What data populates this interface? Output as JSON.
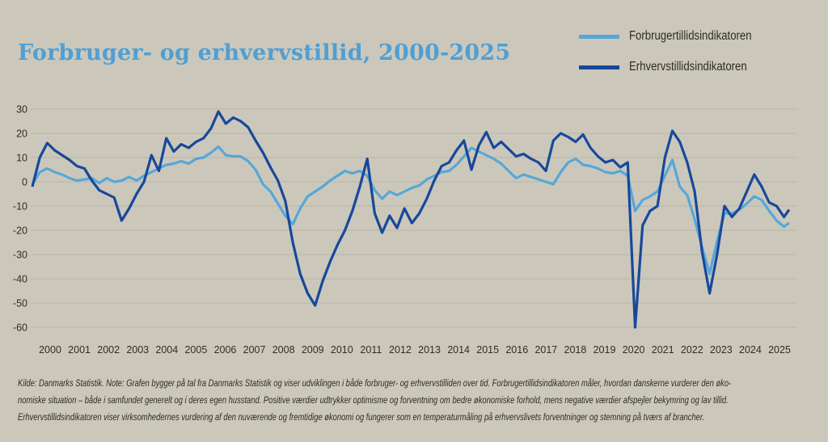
{
  "header": {
    "title": "Forbruger- og erhvervstillid, 2000-2025"
  },
  "legend": {
    "items": [
      {
        "label": "Forbrugertillidsindikatoren",
        "color": "#56a7d8"
      },
      {
        "label": "Erhvervstillidsindikatoren",
        "color": "#17489b"
      }
    ]
  },
  "footnote": {
    "lines": [
      "Kilde: Danmarks Statistik. Note: Grafen bygger på tal fra Danmarks Statistik og viser udviklingen i både forbruger- og erhvervstilliden over tid. Forbrugertillidsindikatoren måler, hvordan danskerne vurderer den øko-",
      "nomiske situation – både i samfundet generelt og i deres egen husstand. Positive værdier udtrykker optimisme og forventning om bedre økonomiske forhold, mens negative værdier afspejler bekymring og lav tillid.",
      "Erhvervstillidsindikatoren viser virksomhedernes vurdering af den nuværende og fremtidige økonomi og fungerer som en temperaturmåling på erhvervslivets forventninger og stemning på tværs af brancher."
    ]
  },
  "chart_data": {
    "type": "line",
    "title": "Forbruger- og erhvervstillid, 2000-2025",
    "xlabel": "",
    "ylabel": "",
    "ylim": [
      -60,
      30
    ],
    "yticks": [
      30,
      20,
      10,
      0,
      -10,
      -20,
      -30,
      -40,
      -50,
      -60
    ],
    "xticks": [
      "2000",
      "2001",
      "2002",
      "2003",
      "2004",
      "2005",
      "2006",
      "2007",
      "2008",
      "2009",
      "2010",
      "2011",
      "2012",
      "2013",
      "2014",
      "2015",
      "2016",
      "2017",
      "2018",
      "2019",
      "2020",
      "2021",
      "2022",
      "2023",
      "2024",
      "2025"
    ],
    "grid": true,
    "legend_position": "top-right",
    "x": [
      2000,
      2000.25,
      2000.5,
      2000.75,
      2001,
      2001.25,
      2001.5,
      2001.75,
      2002,
      2002.25,
      2002.5,
      2002.75,
      2003,
      2003.25,
      2003.5,
      2003.75,
      2004,
      2004.25,
      2004.5,
      2004.75,
      2005,
      2005.25,
      2005.5,
      2005.75,
      2006,
      2006.25,
      2006.5,
      2006.75,
      2007,
      2007.25,
      2007.5,
      2007.75,
      2008,
      2008.25,
      2008.5,
      2008.75,
      2009,
      2009.25,
      2009.5,
      2009.75,
      2010,
      2010.25,
      2010.5,
      2010.75,
      2011,
      2011.25,
      2011.5,
      2011.75,
      2012,
      2012.25,
      2012.5,
      2012.75,
      2013,
      2013.25,
      2013.5,
      2013.75,
      2014,
      2014.25,
      2014.5,
      2014.75,
      2015,
      2015.25,
      2015.5,
      2015.75,
      2016,
      2016.25,
      2016.5,
      2016.75,
      2017,
      2017.25,
      2017.5,
      2017.75,
      2018,
      2018.25,
      2018.5,
      2018.75,
      2019,
      2019.25,
      2019.5,
      2019.75,
      2020,
      2020.25,
      2020.5,
      2020.75,
      2021,
      2021.25,
      2021.5,
      2021.75,
      2022,
      2022.25,
      2022.5,
      2022.75,
      2023,
      2023.25,
      2023.5,
      2023.75,
      2024,
      2024.25,
      2024.5,
      2024.75,
      2025,
      2025.25,
      2025.42
    ],
    "series": [
      {
        "key": "forbruger",
        "name": "Forbrugertillidsindikatoren",
        "color": "#56a7d8",
        "values": [
          -1,
          4,
          5.5,
          4,
          3,
          1.5,
          0.5,
          1,
          1.5,
          -0.5,
          1.5,
          0,
          0.5,
          2,
          0.5,
          2.5,
          4,
          5.5,
          7,
          7.5,
          8.5,
          7.5,
          9.5,
          10,
          12,
          14.5,
          11,
          10.5,
          10.5,
          8.5,
          5,
          -1,
          -4,
          -9,
          -14,
          -17.5,
          -11,
          -6,
          -4,
          -2,
          0.5,
          2.5,
          4.5,
          3.5,
          4.5,
          2.5,
          -3.5,
          -7,
          -4,
          -5.5,
          -4,
          -2.5,
          -1.5,
          1,
          2.5,
          4,
          4.5,
          7,
          10.5,
          14,
          12.5,
          11,
          9.5,
          7.5,
          4.5,
          1.5,
          3,
          2,
          1,
          0,
          -1,
          4,
          8,
          9.5,
          7,
          6.5,
          5.5,
          4,
          3.5,
          4.5,
          2.5,
          -12,
          -7.5,
          -6,
          -4,
          2.5,
          9,
          -2,
          -5.5,
          -15.5,
          -27,
          -38,
          -24.5,
          -13,
          -13,
          -11.5,
          -9,
          -6,
          -7.5,
          -12,
          -16,
          -18.5,
          -17
        ]
      },
      {
        "key": "erhverv",
        "name": "Erhvervstillidsindikatoren",
        "color": "#17489b",
        "values": [
          -2,
          10,
          16,
          13,
          11,
          9,
          6.5,
          5.5,
          0.5,
          -3.5,
          -5,
          -6.5,
          -16,
          -11,
          -5,
          0,
          11,
          4.5,
          18,
          12.5,
          15.5,
          14,
          16.5,
          18,
          22,
          29,
          24,
          26.5,
          25,
          22.5,
          17,
          12,
          6,
          0.5,
          -8,
          -25,
          -38,
          -46,
          -51,
          -41,
          -33,
          -26,
          -20,
          -12,
          -2,
          9.5,
          -13,
          -21,
          -14,
          -19,
          -11,
          -17,
          -13,
          -7,
          0.5,
          6.5,
          8,
          13,
          17,
          5,
          15,
          20.5,
          14,
          16.5,
          13.5,
          10.5,
          11.5,
          9.5,
          8,
          4.5,
          17,
          20,
          18.5,
          16.5,
          19.5,
          14,
          10.5,
          8,
          9,
          6,
          8,
          -60,
          -18,
          -12,
          -10,
          10,
          21,
          16.5,
          8,
          -4,
          -29,
          -46,
          -30,
          -10,
          -14.5,
          -11,
          -4,
          3,
          -2,
          -8.5,
          -10,
          -14.5,
          -11.5
        ]
      }
    ]
  }
}
